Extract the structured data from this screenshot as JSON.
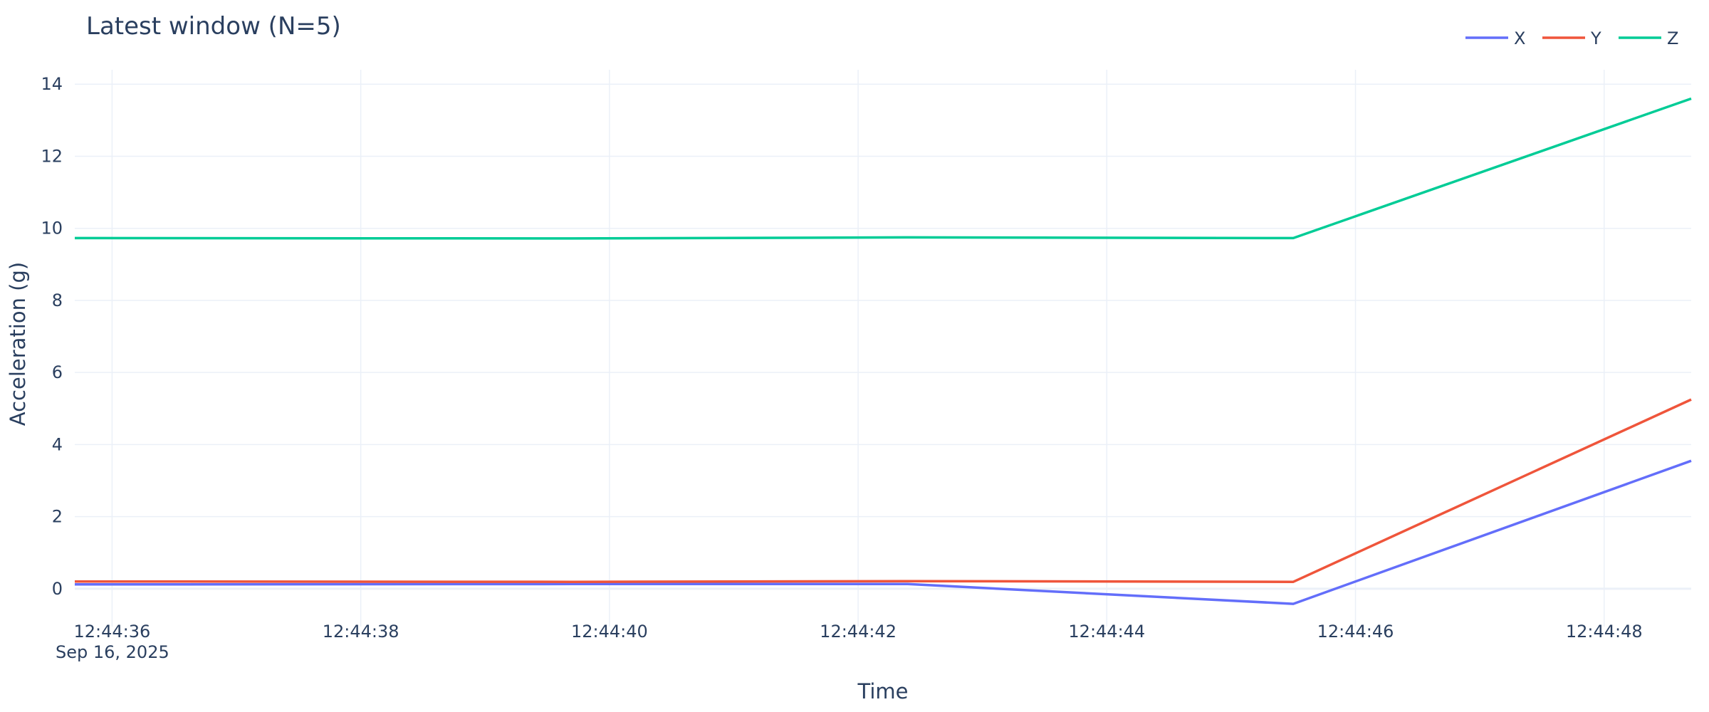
{
  "chart_data": {
    "type": "line",
    "title": "Latest window (N=5)",
    "xlabel": "Time",
    "ylabel": "Acceleration (g)",
    "x_date_label": "Sep 16, 2025",
    "x": [
      "12:44:35.7",
      "12:44:39.7",
      "12:44:42.4",
      "12:44:45.5",
      "12:44:48.7"
    ],
    "x_ticks": [
      "12:44:36",
      "12:44:38",
      "12:44:40",
      "12:44:42",
      "12:44:44",
      "12:44:46",
      "12:44:48"
    ],
    "xlim": [
      "12:44:35.7",
      "12:44:48.7"
    ],
    "y_ticks": [
      0,
      2,
      4,
      6,
      8,
      10,
      12,
      14
    ],
    "ylim": [
      -1.05,
      14.4
    ],
    "grid": true,
    "legend_position": "top-right",
    "series": [
      {
        "name": "X",
        "color": "#636efa",
        "values": [
          0.12,
          0.13,
          0.13,
          -0.42,
          3.55
        ]
      },
      {
        "name": "Y",
        "color": "#ef553b",
        "values": [
          0.2,
          0.19,
          0.21,
          0.19,
          5.25
        ]
      },
      {
        "name": "Z",
        "color": "#00cc96",
        "values": [
          9.73,
          9.72,
          9.75,
          9.73,
          13.6
        ]
      }
    ]
  }
}
